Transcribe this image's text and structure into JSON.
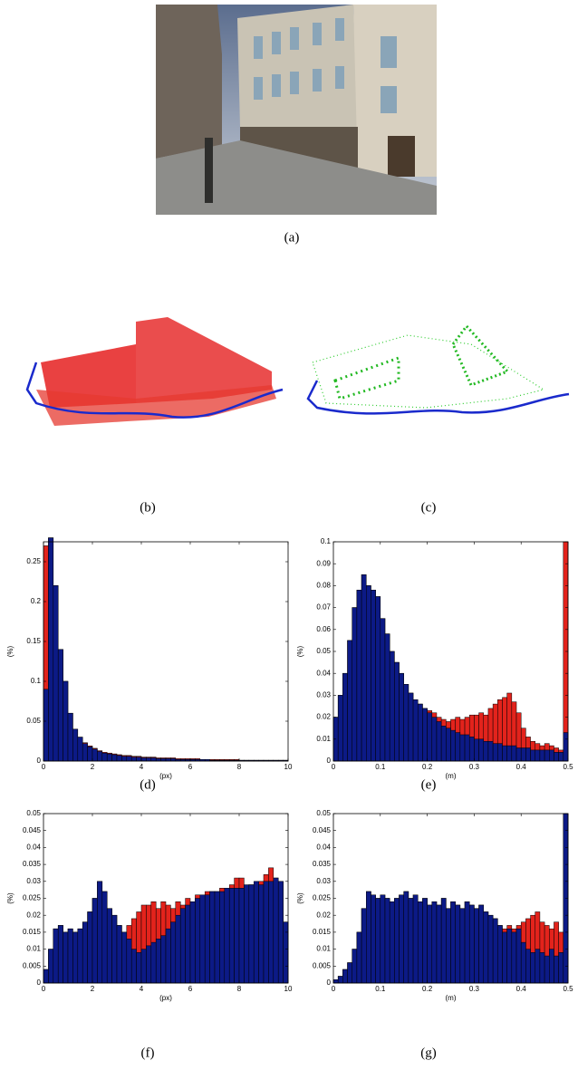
{
  "captions": [
    "(a)",
    "(b)",
    "(c)",
    "(d)",
    "(e)",
    "(f)",
    "(g)"
  ],
  "chart_data": [
    {
      "type": "histogram",
      "xlabel": "(px)",
      "ylabel": "(%)",
      "bins": [
        0,
        0.2,
        0.4,
        0.6,
        0.8,
        1,
        1.2,
        1.4,
        1.6,
        1.8,
        2,
        2.2,
        2.4,
        2.6,
        2.8,
        3,
        3.2,
        3.4,
        3.6,
        3.8,
        4,
        4.2,
        4.4,
        4.6,
        4.8,
        5,
        5.2,
        5.4,
        5.6,
        5.8,
        6,
        6.2,
        6.4,
        6.6,
        6.8,
        7,
        7.2,
        7.4,
        7.6,
        7.8,
        8,
        8.2,
        8.4,
        8.6,
        8.8,
        9,
        9.2,
        9.4,
        9.6,
        9.8,
        10
      ],
      "series": [
        {
          "color": "#e3231c",
          "values": [
            0.27,
            0.28,
            0.22,
            0.14,
            0.1,
            0.06,
            0.04,
            0.03,
            0.023,
            0.019,
            0.016,
            0.013,
            0.011,
            0.01,
            0.009,
            0.008,
            0.007,
            0.007,
            0.006,
            0.006,
            0.005,
            0.005,
            0.005,
            0.004,
            0.004,
            0.004,
            0.004,
            0.003,
            0.003,
            0.003,
            0.003,
            0.003,
            0.002,
            0.002,
            0.002,
            0.002,
            0.002,
            0.002,
            0.002,
            0.002,
            0.001,
            0.001,
            0.001,
            0.001,
            0.001,
            0.001,
            0.001,
            0.001,
            0.001,
            0.001
          ]
        },
        {
          "color": "#0c1a86",
          "values": [
            0.09,
            0.28,
            0.22,
            0.14,
            0.1,
            0.06,
            0.04,
            0.03,
            0.022,
            0.018,
            0.015,
            0.012,
            0.01,
            0.009,
            0.008,
            0.007,
            0.006,
            0.006,
            0.005,
            0.005,
            0.004,
            0.004,
            0.004,
            0.003,
            0.003,
            0.003,
            0.003,
            0.002,
            0.002,
            0.002,
            0.002,
            0.002,
            0.002,
            0.002,
            0.001,
            0.001,
            0.001,
            0.001,
            0.001,
            0.001,
            0.001,
            0.001,
            0.001,
            0.001,
            0.001,
            0.001,
            0.001,
            0.001,
            0.001,
            0.001
          ]
        }
      ],
      "xlim": [
        0,
        10
      ],
      "ylim": [
        0,
        0.275
      ],
      "xticks": [
        0,
        2,
        4,
        6,
        8,
        10
      ],
      "yticks": [
        0,
        0.05,
        0.1,
        0.15,
        0.2,
        0.25
      ]
    },
    {
      "type": "histogram",
      "xlabel": "(m)",
      "ylabel": "(%)",
      "bins": [
        0,
        0.01,
        0.02,
        0.03,
        0.04,
        0.05,
        0.06,
        0.07,
        0.08,
        0.09,
        0.1,
        0.11,
        0.12,
        0.13,
        0.14,
        0.15,
        0.16,
        0.17,
        0.18,
        0.19,
        0.2,
        0.21,
        0.22,
        0.23,
        0.24,
        0.25,
        0.26,
        0.27,
        0.28,
        0.29,
        0.3,
        0.31,
        0.32,
        0.33,
        0.34,
        0.35,
        0.36,
        0.37,
        0.38,
        0.39,
        0.4,
        0.41,
        0.42,
        0.43,
        0.44,
        0.45,
        0.46,
        0.47,
        0.48,
        0.49,
        0.5
      ],
      "series": [
        {
          "color": "#e3231c",
          "values": [
            0.02,
            0.03,
            0.04,
            0.055,
            0.07,
            0.078,
            0.085,
            0.08,
            0.078,
            0.075,
            0.065,
            0.058,
            0.05,
            0.045,
            0.04,
            0.035,
            0.031,
            0.028,
            0.026,
            0.024,
            0.023,
            0.022,
            0.02,
            0.019,
            0.018,
            0.019,
            0.02,
            0.019,
            0.02,
            0.021,
            0.021,
            0.022,
            0.021,
            0.024,
            0.026,
            0.028,
            0.029,
            0.031,
            0.027,
            0.022,
            0.015,
            0.011,
            0.009,
            0.008,
            0.007,
            0.008,
            0.007,
            0.006,
            0.005,
            0.1
          ]
        },
        {
          "color": "#0c1a86",
          "values": [
            0.02,
            0.03,
            0.04,
            0.055,
            0.07,
            0.078,
            0.085,
            0.08,
            0.078,
            0.075,
            0.065,
            0.058,
            0.05,
            0.045,
            0.04,
            0.035,
            0.031,
            0.028,
            0.026,
            0.024,
            0.022,
            0.02,
            0.018,
            0.016,
            0.015,
            0.014,
            0.013,
            0.012,
            0.012,
            0.011,
            0.01,
            0.01,
            0.009,
            0.009,
            0.008,
            0.008,
            0.007,
            0.007,
            0.007,
            0.006,
            0.006,
            0.006,
            0.005,
            0.005,
            0.005,
            0.005,
            0.005,
            0.004,
            0.004,
            0.013
          ]
        }
      ],
      "xlim": [
        0,
        0.5
      ],
      "ylim": [
        0,
        0.1
      ],
      "xticks": [
        0,
        0.1,
        0.2,
        0.3,
        0.4,
        0.5
      ],
      "yticks": [
        0,
        0.01,
        0.02,
        0.03,
        0.04,
        0.05,
        0.06,
        0.07,
        0.08,
        0.09,
        0.1
      ]
    },
    {
      "type": "histogram",
      "xlabel": "(px)",
      "ylabel": "(%)",
      "bins": [
        0,
        0.2,
        0.4,
        0.6,
        0.8,
        1,
        1.2,
        1.4,
        1.6,
        1.8,
        2,
        2.2,
        2.4,
        2.6,
        2.8,
        3,
        3.2,
        3.4,
        3.6,
        3.8,
        4,
        4.2,
        4.4,
        4.6,
        4.8,
        5,
        5.2,
        5.4,
        5.6,
        5.8,
        6,
        6.2,
        6.4,
        6.6,
        6.8,
        7,
        7.2,
        7.4,
        7.6,
        7.8,
        8,
        8.2,
        8.4,
        8.6,
        8.8,
        9,
        9.2,
        9.4,
        9.6,
        9.8,
        10
      ],
      "series": [
        {
          "color": "#e3231c",
          "values": [
            0.004,
            0.01,
            0.016,
            0.017,
            0.015,
            0.016,
            0.015,
            0.016,
            0.018,
            0.021,
            0.025,
            0.03,
            0.027,
            0.022,
            0.02,
            0.017,
            0.015,
            0.017,
            0.019,
            0.021,
            0.023,
            0.023,
            0.024,
            0.022,
            0.024,
            0.023,
            0.022,
            0.024,
            0.023,
            0.025,
            0.024,
            0.026,
            0.026,
            0.027,
            0.027,
            0.027,
            0.028,
            0.027,
            0.029,
            0.031,
            0.031,
            0.028,
            0.029,
            0.029,
            0.03,
            0.032,
            0.034,
            0.031,
            0.03,
            0.018
          ]
        },
        {
          "color": "#0c1a86",
          "values": [
            0.004,
            0.01,
            0.016,
            0.017,
            0.015,
            0.016,
            0.015,
            0.016,
            0.018,
            0.021,
            0.025,
            0.03,
            0.027,
            0.022,
            0.02,
            0.017,
            0.015,
            0.013,
            0.01,
            0.009,
            0.01,
            0.011,
            0.012,
            0.013,
            0.014,
            0.016,
            0.018,
            0.02,
            0.022,
            0.023,
            0.024,
            0.025,
            0.026,
            0.026,
            0.027,
            0.027,
            0.027,
            0.028,
            0.028,
            0.028,
            0.028,
            0.029,
            0.029,
            0.03,
            0.029,
            0.03,
            0.03,
            0.031,
            0.03,
            0.018
          ]
        }
      ],
      "xlim": [
        0,
        10
      ],
      "ylim": [
        0,
        0.05
      ],
      "xticks": [
        0,
        2,
        4,
        6,
        8,
        10
      ],
      "yticks": [
        0,
        0.005,
        0.01,
        0.015,
        0.02,
        0.025,
        0.03,
        0.035,
        0.04,
        0.045,
        0.05
      ]
    },
    {
      "type": "histogram",
      "xlabel": "(m)",
      "ylabel": "(%)",
      "bins": [
        0,
        0.01,
        0.02,
        0.03,
        0.04,
        0.05,
        0.06,
        0.07,
        0.08,
        0.09,
        0.1,
        0.11,
        0.12,
        0.13,
        0.14,
        0.15,
        0.16,
        0.17,
        0.18,
        0.19,
        0.2,
        0.21,
        0.22,
        0.23,
        0.24,
        0.25,
        0.26,
        0.27,
        0.28,
        0.29,
        0.3,
        0.31,
        0.32,
        0.33,
        0.34,
        0.35,
        0.36,
        0.37,
        0.38,
        0.39,
        0.4,
        0.41,
        0.42,
        0.43,
        0.44,
        0.45,
        0.46,
        0.47,
        0.48,
        0.49,
        0.5
      ],
      "series": [
        {
          "color": "#e3231c",
          "values": [
            0.001,
            0.002,
            0.004,
            0.006,
            0.01,
            0.015,
            0.022,
            0.027,
            0.026,
            0.025,
            0.026,
            0.025,
            0.024,
            0.025,
            0.026,
            0.027,
            0.025,
            0.026,
            0.024,
            0.025,
            0.023,
            0.024,
            0.023,
            0.025,
            0.022,
            0.024,
            0.023,
            0.022,
            0.024,
            0.023,
            0.022,
            0.023,
            0.021,
            0.02,
            0.019,
            0.017,
            0.016,
            0.017,
            0.016,
            0.017,
            0.018,
            0.019,
            0.02,
            0.021,
            0.018,
            0.017,
            0.016,
            0.018,
            0.015,
            0.05
          ]
        },
        {
          "color": "#0c1a86",
          "values": [
            0.001,
            0.002,
            0.004,
            0.006,
            0.01,
            0.015,
            0.022,
            0.027,
            0.026,
            0.025,
            0.026,
            0.025,
            0.024,
            0.025,
            0.026,
            0.027,
            0.025,
            0.026,
            0.024,
            0.025,
            0.023,
            0.024,
            0.023,
            0.025,
            0.022,
            0.024,
            0.023,
            0.022,
            0.024,
            0.023,
            0.022,
            0.023,
            0.021,
            0.02,
            0.019,
            0.017,
            0.015,
            0.016,
            0.015,
            0.016,
            0.012,
            0.01,
            0.009,
            0.01,
            0.009,
            0.008,
            0.01,
            0.008,
            0.009,
            0.05
          ]
        }
      ],
      "xlim": [
        0,
        0.5
      ],
      "ylim": [
        0,
        0.05
      ],
      "xticks": [
        0,
        0.1,
        0.2,
        0.3,
        0.4,
        0.5
      ],
      "yticks": [
        0,
        0.005,
        0.01,
        0.015,
        0.02,
        0.025,
        0.03,
        0.035,
        0.04,
        0.045,
        0.05
      ]
    }
  ]
}
